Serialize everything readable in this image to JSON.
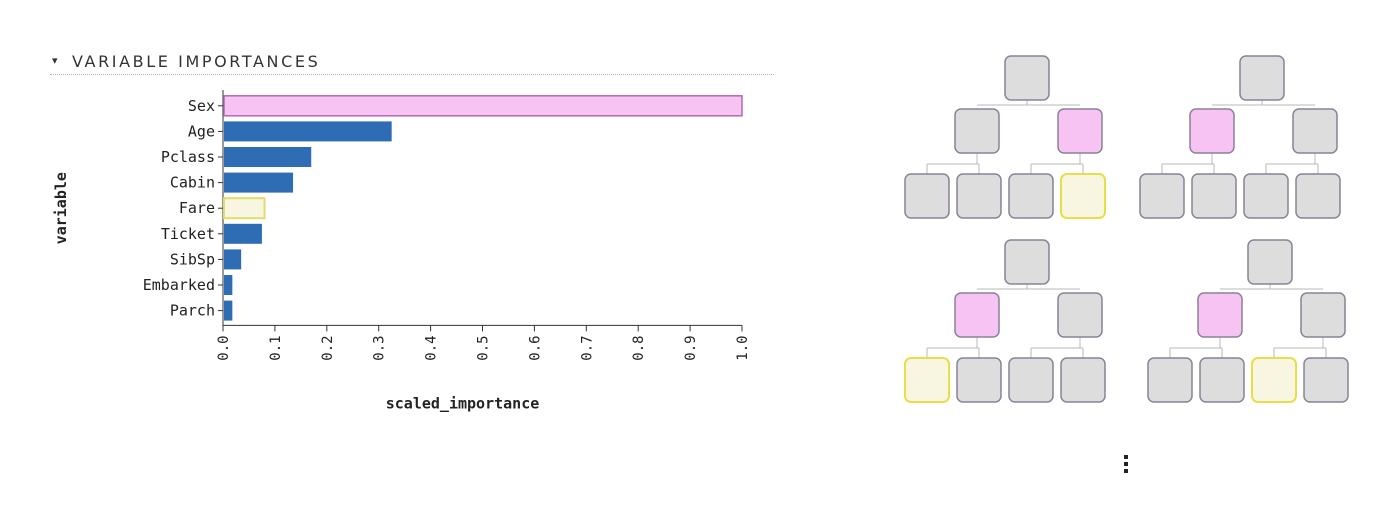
{
  "header": {
    "caret": "▾",
    "title": "VARIABLE IMPORTANCES"
  },
  "chart_data": {
    "type": "bar",
    "orientation": "horizontal",
    "categories": [
      "Sex",
      "Age",
      "Pclass",
      "Cabin",
      "Fare",
      "Ticket",
      "SibSp",
      "Embarked",
      "Parch"
    ],
    "values": [
      1.0,
      0.325,
      0.17,
      0.135,
      0.08,
      0.075,
      0.035,
      0.018,
      0.018
    ],
    "xlabel": "scaled_importance",
    "ylabel": "variable",
    "xlim": [
      0,
      1.0
    ],
    "xticks": [
      "0.0",
      "0.1",
      "0.2",
      "0.3",
      "0.4",
      "0.5",
      "0.6",
      "0.7",
      "0.8",
      "0.9",
      "1.0"
    ],
    "highlights": {
      "Sex": "pink",
      "Fare": "yellow"
    },
    "colors": {
      "bar": "#2e6db3",
      "pink_fill": "#f6c3f3",
      "pink_stroke": "#b06ab3",
      "yellow_fill": "#f8f6e0",
      "yellow_stroke": "#dede6a"
    }
  },
  "trees": {
    "colors": {
      "node_fill": "#dddddd",
      "node_stroke": "#8a8298",
      "pink_fill": "#f6c3f3",
      "yellow_fill": "#f8f6e0",
      "yellow_stroke": "#e6df4a"
    },
    "items": [
      {
        "mid": [
          "plain",
          "pink"
        ],
        "leaves": [
          "plain",
          "plain",
          "plain",
          "yellow"
        ]
      },
      {
        "mid": [
          "pink",
          "plain"
        ],
        "leaves": [
          "plain",
          "plain",
          "plain",
          "plain"
        ]
      },
      {
        "mid": [
          "pink",
          "plain"
        ],
        "leaves": [
          "yellow",
          "plain",
          "plain",
          "plain"
        ]
      },
      {
        "mid": [
          "pink",
          "plain"
        ],
        "leaves": [
          "plain",
          "plain",
          "yellow",
          "plain"
        ]
      }
    ]
  },
  "ellipsis": {
    "icon": "vertical-ellipsis-icon"
  }
}
